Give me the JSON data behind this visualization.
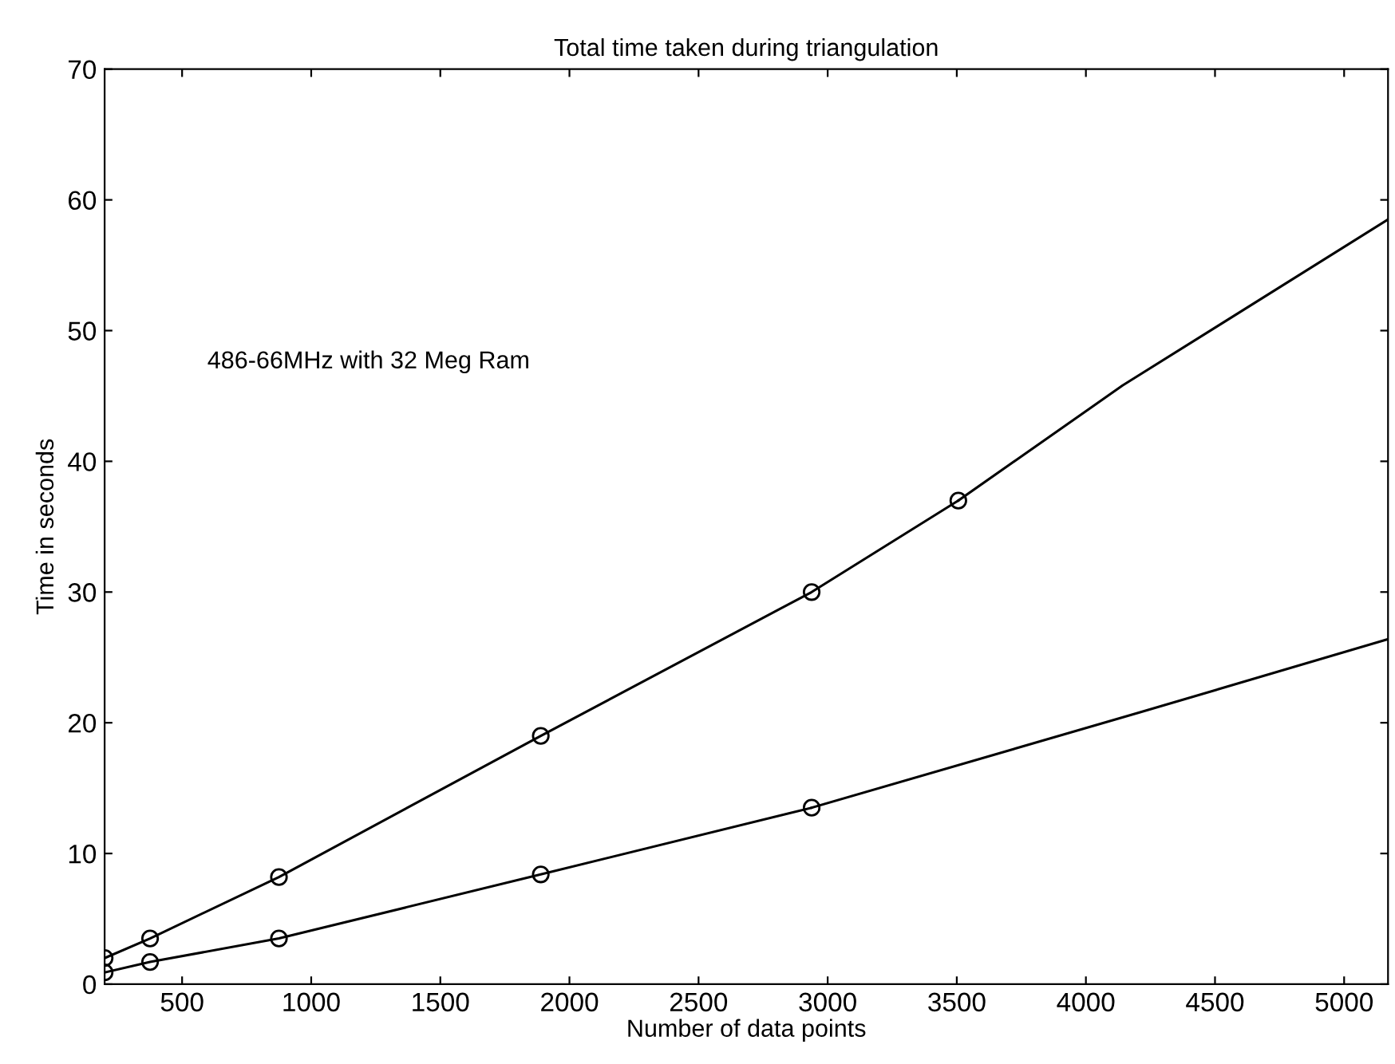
{
  "chart_data": {
    "type": "line",
    "title": "Total time taken during triangulation",
    "xlabel": "Number of data points",
    "ylabel": "Time in seconds",
    "xlim": [
      200,
      5170
    ],
    "xticks": [
      500,
      1000,
      1500,
      2000,
      2500,
      3000,
      3500,
      4000,
      4500,
      5000
    ],
    "ylim": [
      0,
      70
    ],
    "yticks": [
      0,
      10,
      20,
      30,
      40,
      50,
      60,
      70
    ],
    "grid": false,
    "line_style": "solid",
    "series": [
      {
        "name": "486-66MHz with 32 Meg Ram",
        "color": "#000000",
        "marker": "circle",
        "x": [
          200,
          376,
          875,
          1889,
          2938,
          3506
        ],
        "values": [
          2.0,
          3.5,
          8.2,
          19.0,
          30.0,
          37.0
        ]
      },
      {
        "color": "#000000",
        "marker": "circle",
        "x": [
          200,
          376,
          875,
          1889,
          2938
        ],
        "values": [
          0.9,
          1.7,
          3.5,
          8.4,
          13.5
        ]
      },
      {
        "color": "#000000",
        "marker": "none",
        "x": [
          3506,
          4142,
          5170
        ],
        "values": [
          37.0,
          45.8,
          58.5
        ]
      },
      {
        "color": "#000000",
        "marker": "none",
        "x": [
          2938,
          4210,
          5170
        ],
        "values": [
          13.5,
          20.8,
          26.4
        ]
      }
    ]
  }
}
